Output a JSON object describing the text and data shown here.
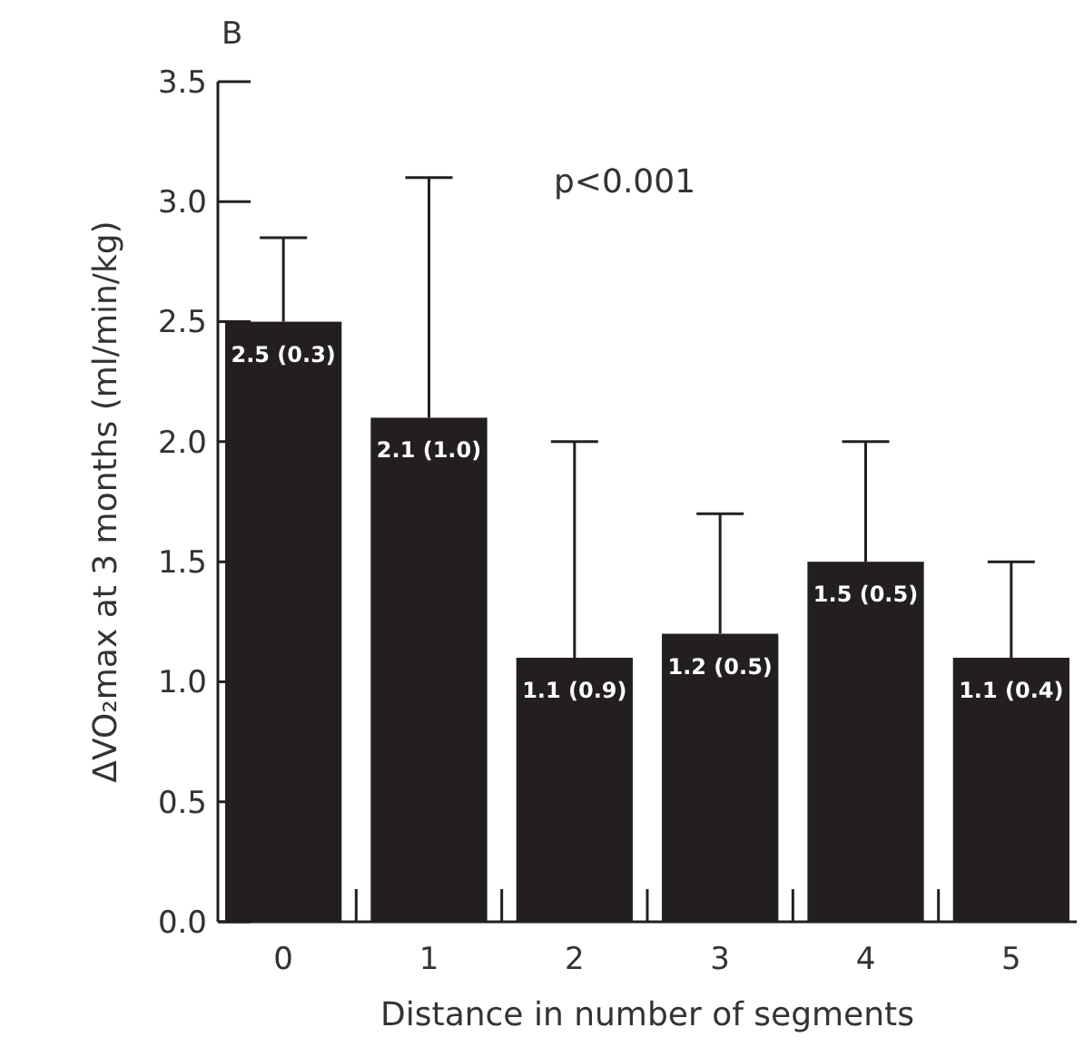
{
  "chart_data": {
    "type": "bar",
    "title": "B",
    "xlabel": "Distance in number of segments",
    "ylabel": "ΔVO₂max at 3 months (ml/min/kg)",
    "categories": [
      "0",
      "1",
      "2",
      "3",
      "4",
      "5"
    ],
    "values": [
      2.5,
      2.1,
      1.1,
      1.2,
      1.5,
      1.1
    ],
    "errors": [
      [
        2.5,
        2.85
      ],
      [
        2.1,
        3.1
      ],
      [
        1.1,
        2.0
      ],
      [
        1.2,
        1.7
      ],
      [
        1.5,
        2.0
      ],
      [
        1.1,
        1.5
      ]
    ],
    "value_labels": [
      "2.5 (0.3)",
      "2.1 (1.0)",
      "1.1 (0.9)",
      "1.2 (0.5)",
      "1.5 (0.5)",
      "1.1 (0.4)"
    ],
    "color": "#231f20",
    "ylim": [
      0,
      3.5
    ],
    "yticks": [
      {
        "value": 0,
        "label": "0.0"
      },
      {
        "value": 0.5,
        "label": "0.5"
      },
      {
        "value": 1,
        "label": "1.0"
      },
      {
        "value": 1.5,
        "label": "1.5"
      },
      {
        "value": 2,
        "label": "2.0"
      },
      {
        "value": 2.5,
        "label": "2.5"
      },
      {
        "value": 3,
        "label": "3.0"
      },
      {
        "value": 3.5,
        "label": "3.5"
      }
    ],
    "annotations": [
      "p<0.001"
    ],
    "grid": false
  }
}
